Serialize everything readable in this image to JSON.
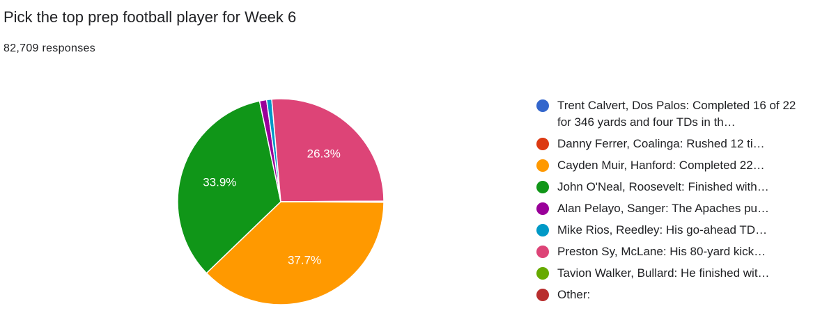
{
  "chart_data": {
    "type": "pie",
    "title": "Pick the top prep football player for Week 6",
    "subtitle": "82,709 responses",
    "categories": [
      "Trent Calvert, Dos Palos: Completed 16 of 22 for 346 yards and four TDs in th…",
      "Danny Ferrer, Coalinga: Rushed 12 ti…",
      "Cayden Muir, Hanford: Completed 22…",
      "John O'Neal, Roosevelt: Finished with…",
      "Alan Pelayo, Sanger: The Apaches pu…",
      "Mike Rios, Reedley: His go-ahead TD…",
      "Preston Sy, McLane: His 80-yard kick…",
      "Tavion Walker, Bullard: He finished wit…",
      "Other:"
    ],
    "values": [
      0.1,
      0.0,
      37.7,
      33.9,
      1.1,
      0.8,
      26.3,
      0.1,
      0.0
    ],
    "value_labels": [
      null,
      null,
      "37.7%",
      "33.9%",
      null,
      null,
      "26.3%",
      null,
      null
    ],
    "colors": [
      "#3366cc",
      "#dc3912",
      "#ff9900",
      "#109618",
      "#990099",
      "#0099c6",
      "#dd4477",
      "#66aa00",
      "#b82e2e"
    ],
    "legend": "right"
  }
}
